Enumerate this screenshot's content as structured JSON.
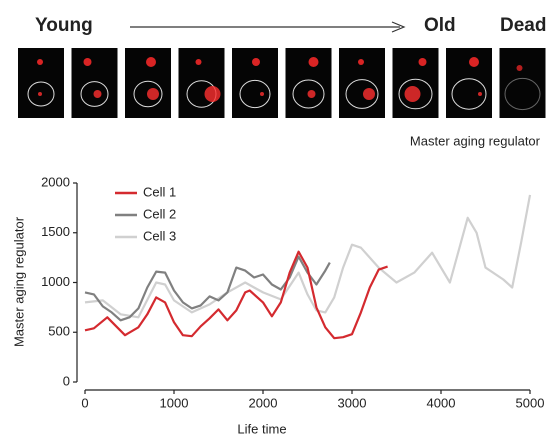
{
  "chart_data": {
    "type": "line",
    "annotations": [
      "Young",
      "Old",
      "Dead",
      "Master aging regulator"
    ],
    "xlabel": "Life time",
    "ylabel": "Master aging regulator",
    "xlim": [
      0,
      5000
    ],
    "xticks": [
      0,
      1000,
      2000,
      3000,
      4000,
      5000
    ],
    "ylim": [
      0,
      2000
    ],
    "yticks": [
      0,
      500,
      1000,
      1500,
      2000
    ],
    "grid": false,
    "legend": "upper left",
    "series": [
      {
        "name": "Cell 3",
        "color": "#d0d0d0",
        "x": [
          0,
          200,
          400,
          600,
          800,
          900,
          1000,
          1200,
          1400,
          1600,
          1800,
          1900,
          2000,
          2200,
          2400,
          2500,
          2600,
          2700,
          2800,
          2900,
          3000,
          3100,
          3300,
          3500,
          3700,
          3900,
          4100,
          4300,
          4400,
          4500,
          4700,
          4800,
          4900,
          5000
        ],
        "values": [
          800,
          820,
          680,
          650,
          1000,
          980,
          820,
          700,
          780,
          900,
          1000,
          950,
          900,
          830,
          1100,
          880,
          720,
          700,
          850,
          1150,
          1380,
          1350,
          1150,
          1000,
          1100,
          1300,
          1000,
          1650,
          1500,
          1150,
          1030,
          950,
          1400,
          1880
        ]
      },
      {
        "name": "Cell 2",
        "color": "#808080",
        "x": [
          0,
          100,
          200,
          300,
          400,
          500,
          600,
          700,
          800,
          900,
          1000,
          1100,
          1200,
          1300,
          1400,
          1500,
          1600,
          1700,
          1800,
          1900,
          2000,
          2100,
          2200,
          2300,
          2400,
          2500,
          2600,
          2700,
          2750
        ],
        "values": [
          900,
          880,
          760,
          700,
          620,
          650,
          740,
          950,
          1110,
          1100,
          920,
          800,
          740,
          770,
          860,
          820,
          900,
          1150,
          1120,
          1050,
          1080,
          980,
          930,
          1050,
          1260,
          1100,
          980,
          1120,
          1200
        ]
      },
      {
        "name": "Cell 1",
        "color": "#d42a2f",
        "x": [
          0,
          100,
          250,
          350,
          450,
          600,
          700,
          800,
          900,
          1000,
          1100,
          1200,
          1300,
          1400,
          1500,
          1600,
          1700,
          1800,
          1850,
          2000,
          2100,
          2200,
          2300,
          2400,
          2500,
          2600,
          2700,
          2800,
          2900,
          3000,
          3100,
          3200,
          3300,
          3400
        ],
        "values": [
          520,
          540,
          650,
          560,
          470,
          550,
          680,
          850,
          800,
          600,
          470,
          460,
          560,
          640,
          730,
          620,
          720,
          900,
          920,
          800,
          660,
          800,
          1100,
          1310,
          1150,
          750,
          550,
          440,
          450,
          480,
          700,
          950,
          1130,
          1160
        ]
      }
    ]
  }
}
